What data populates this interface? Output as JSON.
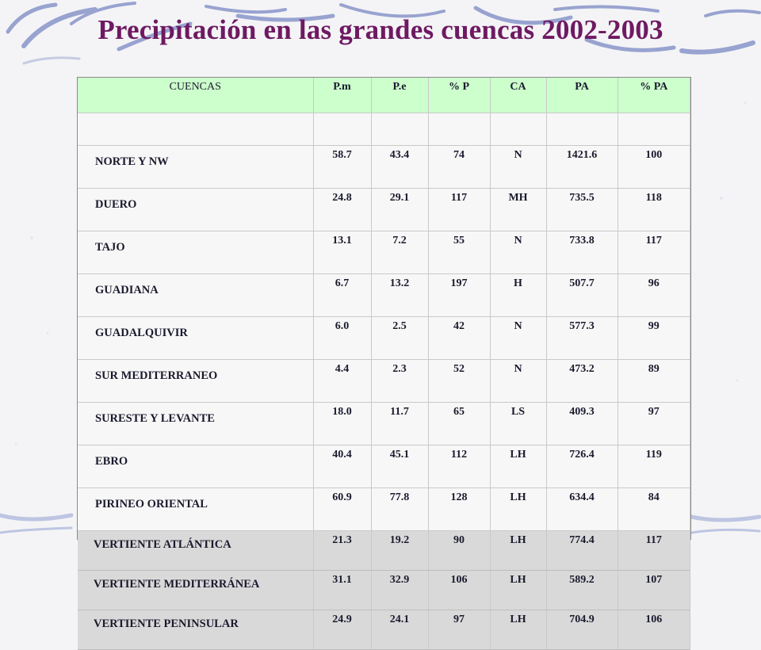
{
  "title": "Precipitación en las grandes cuencas 2002-2003",
  "colors": {
    "title": "#6e1a62",
    "header_bg": "#ccffcc",
    "vertiente_bg": "#d9d9d9",
    "swoosh": "#6b7bb8"
  },
  "table": {
    "headers": [
      "CUENCAS",
      "P.m",
      "P.e",
      "% P",
      "CA",
      "PA",
      "% PA"
    ],
    "rows": [
      {
        "name": "NORTE Y NW",
        "pm": "58.7",
        "pe": "43.4",
        "pp": "74",
        "ca": "N",
        "pa": "1421.6",
        "ppa": "100"
      },
      {
        "name": "DUERO",
        "pm": "24.8",
        "pe": "29.1",
        "pp": "117",
        "ca": "MH",
        "pa": "735.5",
        "ppa": "118"
      },
      {
        "name": "TAJO",
        "pm": "13.1",
        "pe": "7.2",
        "pp": "55",
        "ca": "N",
        "pa": "733.8",
        "ppa": "117"
      },
      {
        "name": "GUADIANA",
        "pm": "6.7",
        "pe": "13.2",
        "pp": "197",
        "ca": "H",
        "pa": "507.7",
        "ppa": "96"
      },
      {
        "name": "GUADALQUIVIR",
        "pm": "6.0",
        "pe": "2.5",
        "pp": "42",
        "ca": "N",
        "pa": "577.3",
        "ppa": "99"
      },
      {
        "name": "SUR MEDITERRANEO",
        "pm": "4.4",
        "pe": "2.3",
        "pp": "52",
        "ca": "N",
        "pa": "473.2",
        "ppa": "89"
      },
      {
        "name": "SURESTE Y LEVANTE",
        "pm": "18.0",
        "pe": "11.7",
        "pp": "65",
        "ca": "LS",
        "pa": "409.3",
        "ppa": "97"
      },
      {
        "name": "EBRO",
        "pm": "40.4",
        "pe": "45.1",
        "pp": "112",
        "ca": "LH",
        "pa": "726.4",
        "ppa": "119"
      },
      {
        "name": "PIRINEO ORIENTAL",
        "pm": "60.9",
        "pe": "77.8",
        "pp": "128",
        "ca": "LH",
        "pa": "634.4",
        "ppa": "84"
      }
    ],
    "vertientes": [
      {
        "name": "VERTIENTE ATLÁNTICA",
        "pm": "21.3",
        "pe": "19.2",
        "pp": "90",
        "ca": "LH",
        "pa": "774.4",
        "ppa": "117"
      },
      {
        "name": "VERTIENTE MEDITERRÁNEA",
        "pm": "31.1",
        "pe": "32.9",
        "pp": "106",
        "ca": "LH",
        "pa": "589.2",
        "ppa": "107"
      },
      {
        "name": "VERTIENTE PENINSULAR",
        "pm": "24.9",
        "pe": "24.1",
        "pp": "97",
        "ca": "LH",
        "pa": "704.9",
        "ppa": "106"
      }
    ]
  }
}
